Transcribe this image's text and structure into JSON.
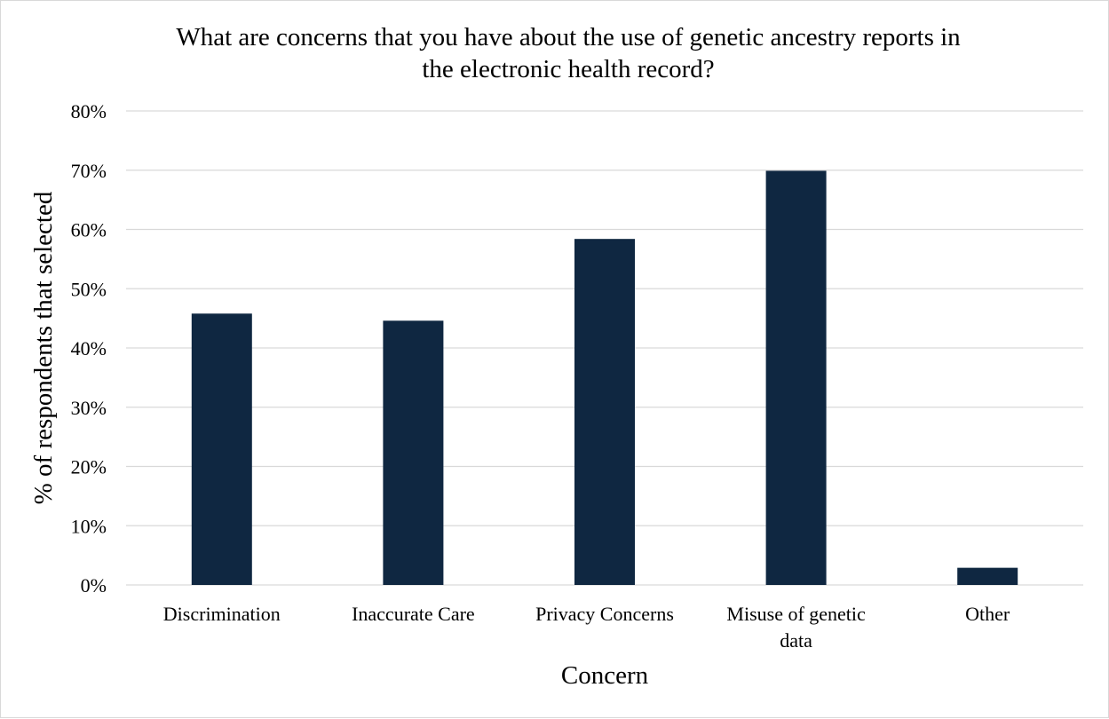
{
  "chart_data": {
    "type": "bar",
    "title_lines": [
      "What are concerns that you have about the use of genetic ancestry reports in",
      "the electronic health record?"
    ],
    "xlabel": "Concern",
    "ylabel": "% of respondents that selected",
    "categories": [
      "Discrimination",
      "Inaccurate Care",
      "Privacy Concerns",
      "Misuse of genetic data",
      "Other"
    ],
    "category_label_lines": [
      [
        "Discrimination"
      ],
      [
        "Inaccurate Care"
      ],
      [
        "Privacy Concerns"
      ],
      [
        "Misuse of genetic",
        "data"
      ],
      [
        "Other"
      ]
    ],
    "values": [
      45.8,
      44.6,
      58.4,
      69.9,
      2.9
    ],
    "value_unit": "%",
    "ylim": [
      0,
      80
    ],
    "yticks": [
      "0%",
      "10%",
      "20%",
      "30%",
      "40%",
      "50%",
      "60%",
      "70%",
      "80%"
    ],
    "ytick_values": [
      0,
      10,
      20,
      30,
      40,
      50,
      60,
      70,
      80
    ],
    "grid": true,
    "legend": "none",
    "bar_color": "#0f2741",
    "grid_color": "#d9d9d9"
  }
}
